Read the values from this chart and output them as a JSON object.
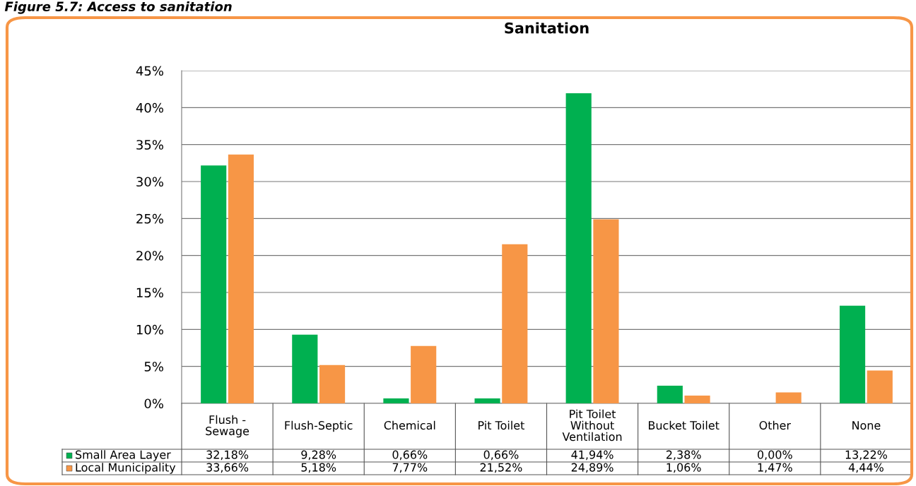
{
  "chart_data": {
    "type": "bar",
    "title": "Sanitation",
    "annotations": [
      "Figure 5.7: Access to sanitation"
    ],
    "categories": [
      "Flush -\nSewage",
      "Flush-Septic",
      "Chemical",
      "Pit Toilet",
      "Pit Toilet\nWithout\nVentilation",
      "Bucket Toilet",
      "Other",
      "None"
    ],
    "series": [
      {
        "name": "Small Area Layer",
        "color": "#00b050",
        "values": [
          32.18,
          9.28,
          0.66,
          0.66,
          41.94,
          2.38,
          0.0,
          13.22
        ],
        "value_labels": [
          "32,18%",
          "9,28%",
          "0,66%",
          "0,66%",
          "41,94%",
          "2,38%",
          "0,00%",
          "13,22%"
        ]
      },
      {
        "name": "Local Municipality",
        "color": "#f79646",
        "values": [
          33.66,
          5.18,
          7.77,
          21.52,
          24.89,
          1.06,
          1.47,
          4.44
        ],
        "value_labels": [
          "33,66%",
          "5,18%",
          "7,77%",
          "21,52%",
          "24,89%",
          "1,06%",
          "1,47%",
          "4,44%"
        ]
      }
    ],
    "ylim": [
      0,
      45
    ],
    "yticks": [
      {
        "value": 0,
        "label": "0%"
      },
      {
        "value": 5,
        "label": "5%"
      },
      {
        "value": 10,
        "label": "10%"
      },
      {
        "value": 15,
        "label": "15%"
      },
      {
        "value": 20,
        "label": "20%"
      },
      {
        "value": 25,
        "label": "25%"
      },
      {
        "value": 30,
        "label": "30%"
      },
      {
        "value": 35,
        "label": "35%"
      },
      {
        "value": 40,
        "label": "40%"
      },
      {
        "value": 45,
        "label": "45%"
      }
    ],
    "grid": "y",
    "legend": "bottom"
  }
}
